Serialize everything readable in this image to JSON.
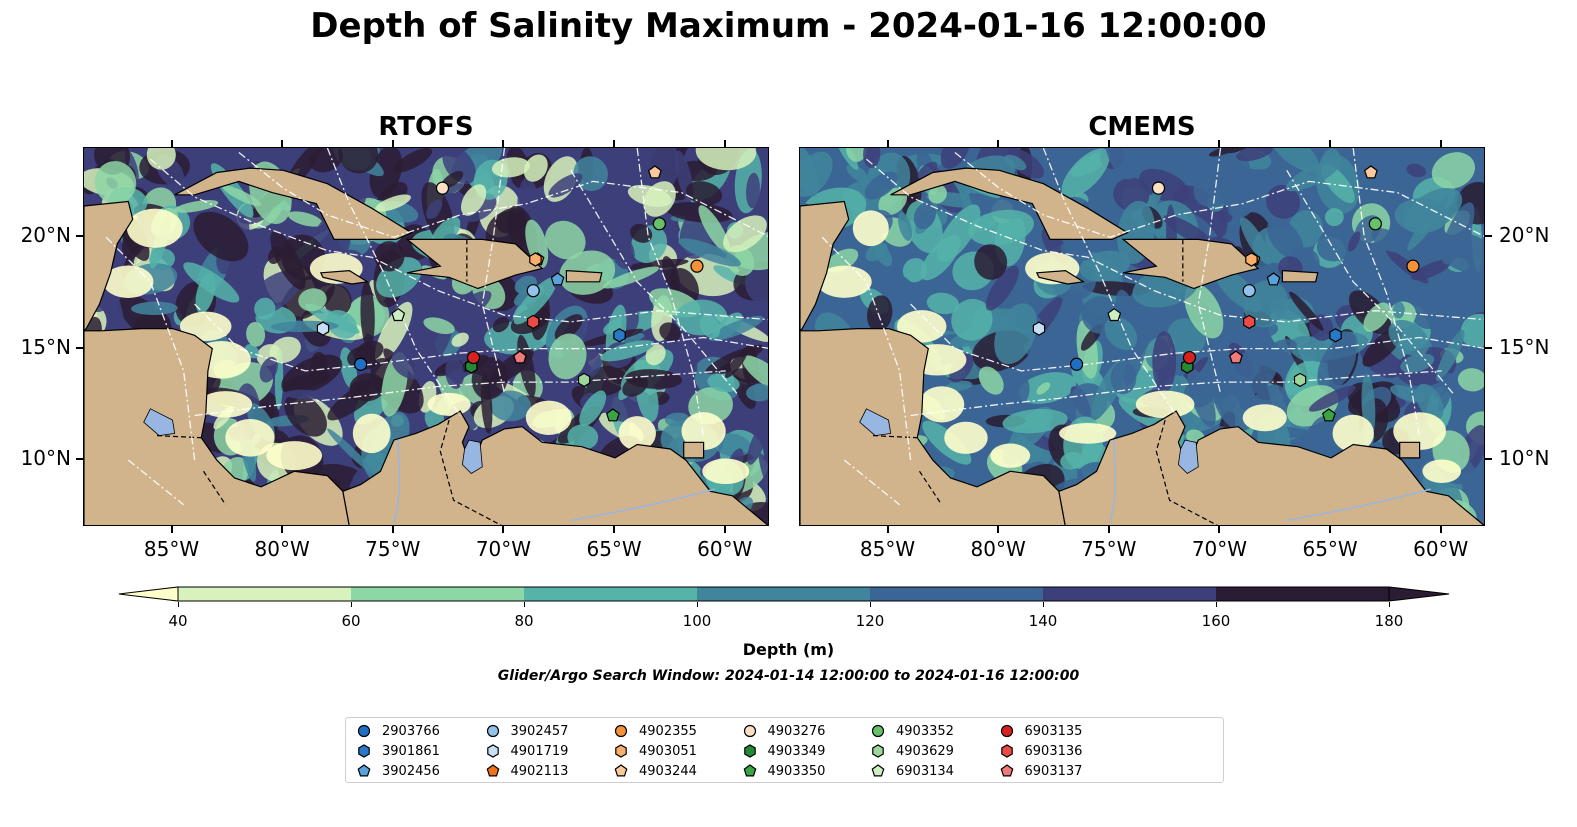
{
  "title": "Depth of Salinity Maximum - 2024-01-16 12:00:00",
  "panels": [
    {
      "title": "RTOFS",
      "palette": [
        "#2a1c33",
        "#3d3f7a",
        "#3b6594",
        "#41859c",
        "#55b3a9",
        "#8dd6a6",
        "#d7f2bc",
        "#ffffcc"
      ]
    },
    {
      "title": "CMEMS",
      "palette": [
        "#2a1c33",
        "#3d3f7a",
        "#3b6594",
        "#41859c",
        "#55b3a9",
        "#8dd6a6",
        "#d7f2bc",
        "#ffffcc"
      ]
    }
  ],
  "axes": {
    "lon_ticks": [
      "85°W",
      "80°W",
      "75°W",
      "70°W",
      "65°W",
      "60°W"
    ],
    "lat_ticks": [
      "20°N",
      "15°N",
      "10°N"
    ],
    "lon_range": [
      -89,
      -58
    ],
    "lat_range": [
      7,
      24
    ]
  },
  "colors": {
    "land": "#d1b48c",
    "lake": "#97b6e1",
    "river": "#97b6e1",
    "grid": "#ffffff"
  },
  "colorbar": {
    "ticks": [
      "40",
      "60",
      "80",
      "100",
      "120",
      "140",
      "160",
      "180"
    ],
    "colors": [
      "#d7f2bc",
      "#8dd6a6",
      "#55b3a9",
      "#41859c",
      "#3b6594",
      "#3d3f7a",
      "#2a1c33"
    ],
    "extend_min_color": "#ffffcc",
    "extend_max_color": "#2a1c33",
    "label": "Depth (m)"
  },
  "search_window": "Glider/Argo Search Window: 2024-01-14 12:00:00 to 2024-01-16 12:00:00",
  "floats": [
    {
      "id": "2903766",
      "marker": "circle",
      "color": "#1f6fc5",
      "lon": -76.5,
      "lat": 14.3
    },
    {
      "id": "3901861",
      "marker": "hexagon",
      "color": "#2879c8",
      "lon": -64.8,
      "lat": 15.6
    },
    {
      "id": "3902456",
      "marker": "pentagon",
      "color": "#5aa2dc",
      "lon": -67.6,
      "lat": 18.1
    },
    {
      "id": "3902457",
      "marker": "circle",
      "color": "#93c2ea",
      "lon": -68.7,
      "lat": 17.6
    },
    {
      "id": "4901719",
      "marker": "hexagon",
      "color": "#c6dff5",
      "lon": -78.2,
      "lat": 15.9
    },
    {
      "id": "4902113",
      "marker": "pentagon",
      "color": "#f0731a",
      "lon": -68.5,
      "lat": 19.0
    },
    {
      "id": "4902355",
      "marker": "circle",
      "color": "#f59236",
      "lon": -61.3,
      "lat": 18.7
    },
    {
      "id": "4903051",
      "marker": "hexagon",
      "color": "#f9ae6b",
      "lon": -68.6,
      "lat": 19.0
    },
    {
      "id": "4903244",
      "marker": "pentagon",
      "color": "#fbc99a",
      "lon": -63.2,
      "lat": 22.9
    },
    {
      "id": "4903276",
      "marker": "circle",
      "color": "#fde0c4",
      "lon": -72.8,
      "lat": 22.2
    },
    {
      "id": "4903349",
      "marker": "hexagon",
      "color": "#248a34",
      "lon": -71.5,
      "lat": 14.2
    },
    {
      "id": "4903350",
      "marker": "pentagon",
      "color": "#3aa544",
      "lon": -65.1,
      "lat": 12.0
    },
    {
      "id": "4903352",
      "marker": "circle",
      "color": "#67c06a",
      "lon": -63.0,
      "lat": 20.6
    },
    {
      "id": "4903629",
      "marker": "hexagon",
      "color": "#9ed79b",
      "lon": -66.4,
      "lat": 13.6
    },
    {
      "id": "6903134",
      "marker": "pentagon",
      "color": "#cdeec4",
      "lon": -74.8,
      "lat": 16.5
    },
    {
      "id": "6903135",
      "marker": "circle",
      "color": "#d6231f",
      "lon": -71.4,
      "lat": 14.6
    },
    {
      "id": "6903136",
      "marker": "hexagon",
      "color": "#ec4a45",
      "lon": -68.7,
      "lat": 16.2
    },
    {
      "id": "6903137",
      "marker": "pentagon",
      "color": "#f07a79",
      "lon": -69.3,
      "lat": 14.6
    }
  ]
}
